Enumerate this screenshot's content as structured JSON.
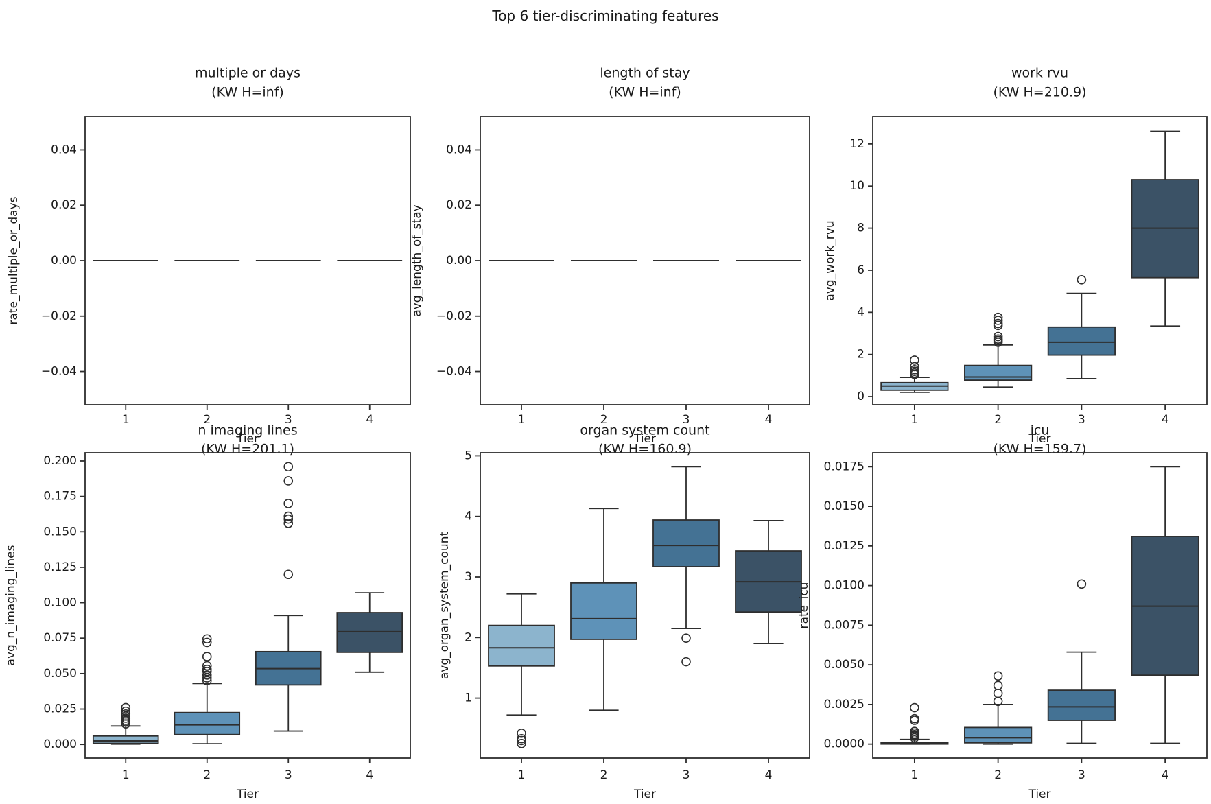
{
  "figure": {
    "title": "Top 6 tier-discriminating features",
    "background": "#ffffff",
    "text_color": "#1a1a1a",
    "line_color": "#2e2e2e"
  },
  "palette": {
    "tier_colors": [
      "#8cb4cd",
      "#5e92b8",
      "#447294",
      "#3b5266"
    ]
  },
  "chart_data": [
    {
      "type": "box",
      "feature": "multiple or days",
      "kw_h": "inf",
      "title_lines": [
        "multiple or days",
        "(KW H=inf)"
      ],
      "xlabel": "Tier",
      "ylabel": "rate_multiple_or_days",
      "categories": [
        "1",
        "2",
        "3",
        "4"
      ],
      "ylim": [
        -0.052,
        0.052
      ],
      "ytick_values": [
        -0.04,
        -0.02,
        0.0,
        0.02,
        0.04
      ],
      "ytick_labels": [
        "−0.04",
        "−0.02",
        "0.00",
        "0.02",
        "0.04"
      ],
      "boxes": [
        {
          "tier": "1",
          "whislo": 0,
          "q1": 0,
          "median": 0,
          "q3": 0,
          "whishi": 0,
          "outliers": []
        },
        {
          "tier": "2",
          "whislo": 0,
          "q1": 0,
          "median": 0,
          "q3": 0,
          "whishi": 0,
          "outliers": []
        },
        {
          "tier": "3",
          "whislo": 0,
          "q1": 0,
          "median": 0,
          "q3": 0,
          "whishi": 0,
          "outliers": []
        },
        {
          "tier": "4",
          "whislo": 0,
          "q1": 0,
          "median": 0,
          "q3": 0,
          "whishi": 0,
          "outliers": []
        }
      ]
    },
    {
      "type": "box",
      "feature": "length of stay",
      "kw_h": "inf",
      "title_lines": [
        "length of stay",
        "(KW H=inf)"
      ],
      "xlabel": "Tier",
      "ylabel": "avg_length_of_stay",
      "categories": [
        "1",
        "2",
        "3",
        "4"
      ],
      "ylim": [
        -0.052,
        0.052
      ],
      "ytick_values": [
        -0.04,
        -0.02,
        0.0,
        0.02,
        0.04
      ],
      "ytick_labels": [
        "−0.04",
        "−0.02",
        "0.00",
        "0.02",
        "0.04"
      ],
      "boxes": [
        {
          "tier": "1",
          "whislo": 0,
          "q1": 0,
          "median": 0,
          "q3": 0,
          "whishi": 0,
          "outliers": []
        },
        {
          "tier": "2",
          "whislo": 0,
          "q1": 0,
          "median": 0,
          "q3": 0,
          "whishi": 0,
          "outliers": []
        },
        {
          "tier": "3",
          "whislo": 0,
          "q1": 0,
          "median": 0,
          "q3": 0,
          "whishi": 0,
          "outliers": []
        },
        {
          "tier": "4",
          "whislo": 0,
          "q1": 0,
          "median": 0,
          "q3": 0,
          "whishi": 0,
          "outliers": []
        }
      ]
    },
    {
      "type": "box",
      "feature": "work rvu",
      "kw_h": "210.9",
      "title_lines": [
        "work rvu",
        "(KW H=210.9)"
      ],
      "xlabel": "Tier",
      "ylabel": "avg_work_rvu",
      "categories": [
        "1",
        "2",
        "3",
        "4"
      ],
      "ylim": [
        -0.39,
        13.3
      ],
      "ytick_values": [
        0,
        2,
        4,
        6,
        8,
        10,
        12
      ],
      "ytick_labels": [
        "0",
        "2",
        "4",
        "6",
        "8",
        "10",
        "12"
      ],
      "boxes": [
        {
          "tier": "1",
          "whislo": 0.2,
          "q1": 0.3,
          "median": 0.5,
          "q3": 0.66,
          "whishi": 0.91,
          "outliers": [
            1.05,
            1.12,
            1.2,
            1.28,
            1.42,
            1.73
          ]
        },
        {
          "tier": "2",
          "whislo": 0.45,
          "q1": 0.78,
          "median": 0.93,
          "q3": 1.48,
          "whishi": 2.45,
          "outliers": [
            2.58,
            2.66,
            2.73,
            2.85,
            3.38,
            3.47,
            3.62,
            3.76
          ]
        },
        {
          "tier": "3",
          "whislo": 0.85,
          "q1": 1.97,
          "median": 2.58,
          "q3": 3.3,
          "whishi": 4.9,
          "outliers": [
            5.55
          ]
        },
        {
          "tier": "4",
          "whislo": 3.35,
          "q1": 5.65,
          "median": 8.0,
          "q3": 10.3,
          "whishi": 12.6,
          "outliers": []
        }
      ]
    },
    {
      "type": "box",
      "feature": "n imaging lines",
      "kw_h": "201.1",
      "title_lines": [
        "n imaging lines",
        "(KW H=201.1)"
      ],
      "xlabel": "Tier",
      "ylabel": "avg_n_imaging_lines",
      "categories": [
        "1",
        "2",
        "3",
        "4"
      ],
      "ylim": [
        -0.0096,
        0.2058
      ],
      "ytick_values": [
        0.0,
        0.025,
        0.05,
        0.075,
        0.1,
        0.125,
        0.15,
        0.175,
        0.2
      ],
      "ytick_labels": [
        "0.000",
        "0.025",
        "0.050",
        "0.075",
        "0.100",
        "0.125",
        "0.150",
        "0.175",
        "0.200"
      ],
      "boxes": [
        {
          "tier": "1",
          "whislo": 0.0002,
          "q1": 0.0008,
          "median": 0.0025,
          "q3": 0.006,
          "whishi": 0.013,
          "outliers": [
            0.0145,
            0.016,
            0.017,
            0.0185,
            0.02,
            0.0215,
            0.0235,
            0.026
          ]
        },
        {
          "tier": "2",
          "whislo": 0.0005,
          "q1": 0.007,
          "median": 0.0138,
          "q3": 0.0225,
          "whishi": 0.043,
          "outliers": [
            0.045,
            0.047,
            0.049,
            0.0515,
            0.053,
            0.0555,
            0.062,
            0.072,
            0.0745
          ]
        },
        {
          "tier": "3",
          "whislo": 0.0095,
          "q1": 0.042,
          "median": 0.0535,
          "q3": 0.0655,
          "whishi": 0.091,
          "outliers": [
            0.12,
            0.156,
            0.159,
            0.161,
            0.17,
            0.186,
            0.196
          ]
        },
        {
          "tier": "4",
          "whislo": 0.051,
          "q1": 0.065,
          "median": 0.0795,
          "q3": 0.093,
          "whishi": 0.107,
          "outliers": []
        }
      ]
    },
    {
      "type": "box",
      "feature": "organ system count",
      "kw_h": "160.9",
      "title_lines": [
        "organ system count",
        "(KW H=160.9)"
      ],
      "xlabel": "Tier",
      "ylabel": "avg_organ_system_count",
      "categories": [
        "1",
        "2",
        "3",
        "4"
      ],
      "ylim": [
        0.01,
        5.05
      ],
      "ytick_values": [
        1,
        2,
        3,
        4,
        5
      ],
      "ytick_labels": [
        "1",
        "2",
        "3",
        "4",
        "5"
      ],
      "boxes": [
        {
          "tier": "1",
          "whislo": 0.72,
          "q1": 1.53,
          "median": 1.83,
          "q3": 2.2,
          "whishi": 2.72,
          "outliers": [
            0.42,
            0.33,
            0.3,
            0.25
          ]
        },
        {
          "tier": "2",
          "whislo": 0.8,
          "q1": 1.97,
          "median": 2.31,
          "q3": 2.9,
          "whishi": 4.13,
          "outliers": []
        },
        {
          "tier": "3",
          "whislo": 2.15,
          "q1": 3.17,
          "median": 3.52,
          "q3": 3.94,
          "whishi": 4.82,
          "outliers": [
            1.99,
            1.6
          ]
        },
        {
          "tier": "4",
          "whislo": 1.9,
          "q1": 2.42,
          "median": 2.92,
          "q3": 3.43,
          "whishi": 3.93,
          "outliers": []
        }
      ]
    },
    {
      "type": "box",
      "feature": "icu",
      "kw_h": "159.7",
      "title_lines": [
        "icu",
        "(KW H=159.7)"
      ],
      "xlabel": "Tier",
      "ylabel": "rate_icu",
      "categories": [
        "1",
        "2",
        "3",
        "4"
      ],
      "ylim": [
        -0.00088,
        0.01838
      ],
      "ytick_values": [
        0.0,
        0.0025,
        0.005,
        0.0075,
        0.01,
        0.0125,
        0.015,
        0.0175
      ],
      "ytick_labels": [
        "0.0000",
        "0.0025",
        "0.0050",
        "0.0075",
        "0.0100",
        "0.0125",
        "0.0150",
        "0.0175"
      ],
      "boxes": [
        {
          "tier": "1",
          "whislo": 0.0,
          "q1": 0.0,
          "median": 5e-05,
          "q3": 0.00012,
          "whishi": 0.0003,
          "outliers": [
            0.0004,
            0.0005,
            0.00055,
            0.0006,
            0.0007,
            0.0008,
            0.0015,
            0.0016,
            0.0023
          ]
        },
        {
          "tier": "2",
          "whislo": 0.0,
          "q1": 8e-05,
          "median": 0.0004,
          "q3": 0.00105,
          "whishi": 0.0025,
          "outliers": [
            0.0027,
            0.0032,
            0.0037,
            0.0043
          ]
        },
        {
          "tier": "3",
          "whislo": 5e-05,
          "q1": 0.0015,
          "median": 0.00235,
          "q3": 0.0034,
          "whishi": 0.0058,
          "outliers": [
            0.0101
          ]
        },
        {
          "tier": "4",
          "whislo": 5e-05,
          "q1": 0.00435,
          "median": 0.0087,
          "q3": 0.0131,
          "whishi": 0.0175,
          "outliers": []
        }
      ]
    }
  ]
}
